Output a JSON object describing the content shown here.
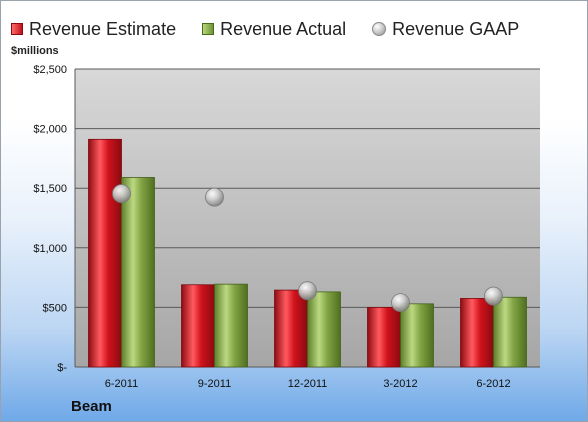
{
  "chart_data": {
    "type": "bar",
    "ylabel": "$millions",
    "xlabel": "Beam",
    "categories": [
      "6-2011",
      "9-2011",
      "12-2011",
      "3-2012",
      "6-2012"
    ],
    "series": [
      {
        "name": "Revenue Estimate",
        "kind": "bar",
        "color": "#c8141e",
        "values": [
          1910,
          690,
          645,
          500,
          575
        ]
      },
      {
        "name": "Revenue Actual",
        "kind": "bar",
        "color": "#7a9a3c",
        "values": [
          1590,
          695,
          630,
          530,
          585
        ]
      },
      {
        "name": "Revenue GAAP",
        "kind": "marker",
        "color": "#b5b5b5",
        "values": [
          1455,
          1425,
          640,
          540,
          595
        ]
      }
    ],
    "ylim": [
      0,
      2500
    ],
    "yticks": [
      0,
      500,
      1000,
      1500,
      2000,
      2500
    ],
    "ytick_labels": [
      "$-",
      "$500",
      "$1,000",
      "$1,500",
      "$2,000",
      "$2,500"
    ],
    "grid": true,
    "legend_position": "top"
  }
}
